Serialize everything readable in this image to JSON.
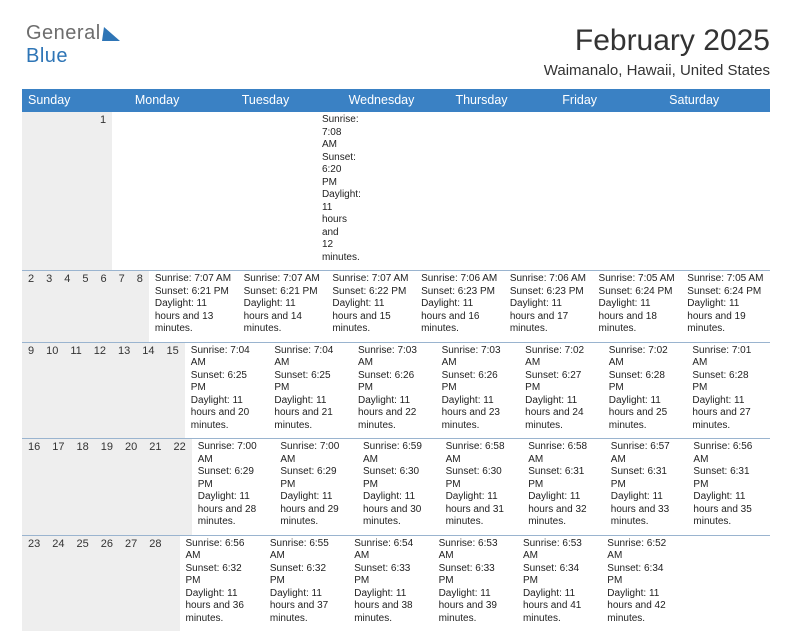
{
  "logo": {
    "word1": "General",
    "word2": "Blue"
  },
  "title": "February 2025",
  "location": "Waimanalo, Hawaii, United States",
  "colors": {
    "header_bg": "#3a81c4",
    "header_text": "#ffffff",
    "daynum_bg": "#eeeeee",
    "week_divider": "#9ab4cf",
    "text": "#222222",
    "logo_gray": "#6d6d6d",
    "logo_blue": "#2e75b6",
    "background": "#ffffff"
  },
  "weekdays": [
    "Sunday",
    "Monday",
    "Tuesday",
    "Wednesday",
    "Thursday",
    "Friday",
    "Saturday"
  ],
  "weeks": [
    [
      {
        "n": "",
        "sunrise": "",
        "sunset": "",
        "daylight": ""
      },
      {
        "n": "",
        "sunrise": "",
        "sunset": "",
        "daylight": ""
      },
      {
        "n": "",
        "sunrise": "",
        "sunset": "",
        "daylight": ""
      },
      {
        "n": "",
        "sunrise": "",
        "sunset": "",
        "daylight": ""
      },
      {
        "n": "",
        "sunrise": "",
        "sunset": "",
        "daylight": ""
      },
      {
        "n": "",
        "sunrise": "",
        "sunset": "",
        "daylight": ""
      },
      {
        "n": "1",
        "sunrise": "Sunrise: 7:08 AM",
        "sunset": "Sunset: 6:20 PM",
        "daylight": "Daylight: 11 hours and 12 minutes."
      }
    ],
    [
      {
        "n": "2",
        "sunrise": "Sunrise: 7:07 AM",
        "sunset": "Sunset: 6:21 PM",
        "daylight": "Daylight: 11 hours and 13 minutes."
      },
      {
        "n": "3",
        "sunrise": "Sunrise: 7:07 AM",
        "sunset": "Sunset: 6:21 PM",
        "daylight": "Daylight: 11 hours and 14 minutes."
      },
      {
        "n": "4",
        "sunrise": "Sunrise: 7:07 AM",
        "sunset": "Sunset: 6:22 PM",
        "daylight": "Daylight: 11 hours and 15 minutes."
      },
      {
        "n": "5",
        "sunrise": "Sunrise: 7:06 AM",
        "sunset": "Sunset: 6:23 PM",
        "daylight": "Daylight: 11 hours and 16 minutes."
      },
      {
        "n": "6",
        "sunrise": "Sunrise: 7:06 AM",
        "sunset": "Sunset: 6:23 PM",
        "daylight": "Daylight: 11 hours and 17 minutes."
      },
      {
        "n": "7",
        "sunrise": "Sunrise: 7:05 AM",
        "sunset": "Sunset: 6:24 PM",
        "daylight": "Daylight: 11 hours and 18 minutes."
      },
      {
        "n": "8",
        "sunrise": "Sunrise: 7:05 AM",
        "sunset": "Sunset: 6:24 PM",
        "daylight": "Daylight: 11 hours and 19 minutes."
      }
    ],
    [
      {
        "n": "9",
        "sunrise": "Sunrise: 7:04 AM",
        "sunset": "Sunset: 6:25 PM",
        "daylight": "Daylight: 11 hours and 20 minutes."
      },
      {
        "n": "10",
        "sunrise": "Sunrise: 7:04 AM",
        "sunset": "Sunset: 6:25 PM",
        "daylight": "Daylight: 11 hours and 21 minutes."
      },
      {
        "n": "11",
        "sunrise": "Sunrise: 7:03 AM",
        "sunset": "Sunset: 6:26 PM",
        "daylight": "Daylight: 11 hours and 22 minutes."
      },
      {
        "n": "12",
        "sunrise": "Sunrise: 7:03 AM",
        "sunset": "Sunset: 6:26 PM",
        "daylight": "Daylight: 11 hours and 23 minutes."
      },
      {
        "n": "13",
        "sunrise": "Sunrise: 7:02 AM",
        "sunset": "Sunset: 6:27 PM",
        "daylight": "Daylight: 11 hours and 24 minutes."
      },
      {
        "n": "14",
        "sunrise": "Sunrise: 7:02 AM",
        "sunset": "Sunset: 6:28 PM",
        "daylight": "Daylight: 11 hours and 25 minutes."
      },
      {
        "n": "15",
        "sunrise": "Sunrise: 7:01 AM",
        "sunset": "Sunset: 6:28 PM",
        "daylight": "Daylight: 11 hours and 27 minutes."
      }
    ],
    [
      {
        "n": "16",
        "sunrise": "Sunrise: 7:00 AM",
        "sunset": "Sunset: 6:29 PM",
        "daylight": "Daylight: 11 hours and 28 minutes."
      },
      {
        "n": "17",
        "sunrise": "Sunrise: 7:00 AM",
        "sunset": "Sunset: 6:29 PM",
        "daylight": "Daylight: 11 hours and 29 minutes."
      },
      {
        "n": "18",
        "sunrise": "Sunrise: 6:59 AM",
        "sunset": "Sunset: 6:30 PM",
        "daylight": "Daylight: 11 hours and 30 minutes."
      },
      {
        "n": "19",
        "sunrise": "Sunrise: 6:58 AM",
        "sunset": "Sunset: 6:30 PM",
        "daylight": "Daylight: 11 hours and 31 minutes."
      },
      {
        "n": "20",
        "sunrise": "Sunrise: 6:58 AM",
        "sunset": "Sunset: 6:31 PM",
        "daylight": "Daylight: 11 hours and 32 minutes."
      },
      {
        "n": "21",
        "sunrise": "Sunrise: 6:57 AM",
        "sunset": "Sunset: 6:31 PM",
        "daylight": "Daylight: 11 hours and 33 minutes."
      },
      {
        "n": "22",
        "sunrise": "Sunrise: 6:56 AM",
        "sunset": "Sunset: 6:31 PM",
        "daylight": "Daylight: 11 hours and 35 minutes."
      }
    ],
    [
      {
        "n": "23",
        "sunrise": "Sunrise: 6:56 AM",
        "sunset": "Sunset: 6:32 PM",
        "daylight": "Daylight: 11 hours and 36 minutes."
      },
      {
        "n": "24",
        "sunrise": "Sunrise: 6:55 AM",
        "sunset": "Sunset: 6:32 PM",
        "daylight": "Daylight: 11 hours and 37 minutes."
      },
      {
        "n": "25",
        "sunrise": "Sunrise: 6:54 AM",
        "sunset": "Sunset: 6:33 PM",
        "daylight": "Daylight: 11 hours and 38 minutes."
      },
      {
        "n": "26",
        "sunrise": "Sunrise: 6:53 AM",
        "sunset": "Sunset: 6:33 PM",
        "daylight": "Daylight: 11 hours and 39 minutes."
      },
      {
        "n": "27",
        "sunrise": "Sunrise: 6:53 AM",
        "sunset": "Sunset: 6:34 PM",
        "daylight": "Daylight: 11 hours and 41 minutes."
      },
      {
        "n": "28",
        "sunrise": "Sunrise: 6:52 AM",
        "sunset": "Sunset: 6:34 PM",
        "daylight": "Daylight: 11 hours and 42 minutes."
      },
      {
        "n": "",
        "sunrise": "",
        "sunset": "",
        "daylight": ""
      }
    ]
  ]
}
